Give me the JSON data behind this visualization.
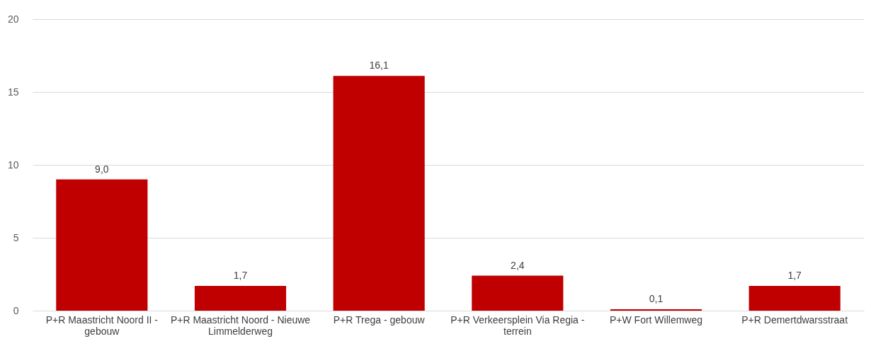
{
  "chart_data": {
    "type": "bar",
    "categories": [
      "P+R Maastricht Noord II - gebouw",
      "P+R Maastricht Noord - Nieuwe Limmelderweg",
      "P+R Trega - gebouw",
      "P+R Verkeersplein Via Regia - terrein",
      "P+W Fort Willemweg",
      "P+R Demertdwarsstraat"
    ],
    "values": [
      9.0,
      1.7,
      16.1,
      2.4,
      0.1,
      1.7
    ],
    "value_labels": [
      "9,0",
      "1,7",
      "16,1",
      "2,4",
      "0,1",
      "1,7"
    ],
    "color": "#c00000",
    "ylim": [
      0,
      20
    ],
    "yticks": [
      0,
      5,
      10,
      15,
      20
    ],
    "grid": "y"
  }
}
